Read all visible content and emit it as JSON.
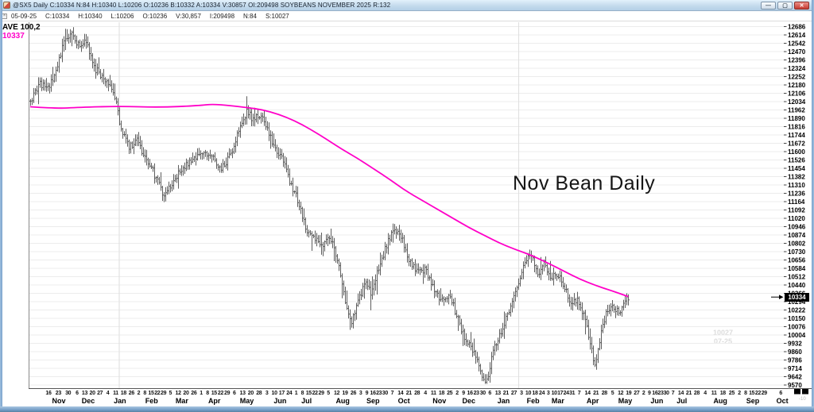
{
  "window": {
    "title": "@SX5 Daily C:10334 N:84 H:10340 L:10206 O:10236 B:10332 A:10334 V:30857 OI:209498 SOYBEANS NOVEMBER 2025 R:132",
    "controls": {
      "minimize": "—",
      "maximize": "▢",
      "close": "✕"
    }
  },
  "info_bar": {
    "collapse_glyph": "×",
    "date": "05-09-25",
    "fields": [
      "C:10334",
      "H:10340",
      "L:10206",
      "O:10236",
      "V:30,857",
      "I:209498",
      "N:84",
      "S:10027"
    ]
  },
  "overlay": {
    "ave_label": "AVE 100,2",
    "ave_value": "10337",
    "annotation": "Nov Bean Daily",
    "watermark_line1": "10027",
    "watermark_line2": "07-25",
    "corner_hint": "-10"
  },
  "chart_data": {
    "type": "ohlc-bar",
    "symbol": "@SX5",
    "timeframe": "Daily",
    "contract": "SOYBEANS NOVEMBER 2025",
    "session": {
      "date": "05-09-25",
      "open": 10236,
      "high": 10340,
      "low": 10206,
      "close": 10334,
      "volume": 30857,
      "open_interest": 209498
    },
    "current_price": {
      "label": "10334",
      "value_cents": 1033.5
    },
    "colors": {
      "bars": "#4d4d4d",
      "grid": "#ececec",
      "ma": "#ff00c8",
      "year_line": "#dedede"
    },
    "y_axis": {
      "unit": "US cents per bushel, eighths notation",
      "top_value_cents": 1268.75,
      "step_cents": 7.25,
      "labels": [
        "12686",
        "12614",
        "12542",
        "12470",
        "12396",
        "12324",
        "12252",
        "12180",
        "12106",
        "12034",
        "11962",
        "11890",
        "11816",
        "11744",
        "11672",
        "11600",
        "11526",
        "11454",
        "11382",
        "11310",
        "11236",
        "11164",
        "11092",
        "11020",
        "10946",
        "10874",
        "10802",
        "10730",
        "10656",
        "10584",
        "10512",
        "10440",
        "10366",
        "10294",
        "10222",
        "10150",
        "10076",
        "10004",
        "9932",
        "9860",
        "9786",
        "9714",
        "9642",
        "9570"
      ]
    },
    "x_axis": {
      "year_separators": [
        0.12,
        0.649
      ],
      "months": [
        {
          "label": "Nov",
          "center": 0.04,
          "days": [
            "16",
            "23",
            "30"
          ]
        },
        {
          "label": "Dec",
          "center": 0.079,
          "days": [
            "6",
            "13",
            "20",
            "27"
          ]
        },
        {
          "label": "Jan",
          "center": 0.121,
          "days": [
            "4",
            "11",
            "18",
            "26"
          ]
        },
        {
          "label": "Feb",
          "center": 0.163,
          "days": [
            "2",
            "8",
            "15",
            "22",
            "29"
          ]
        },
        {
          "label": "Mar",
          "center": 0.203,
          "days": [
            "5",
            "12",
            "20",
            "26"
          ]
        },
        {
          "label": "Apr",
          "center": 0.246,
          "days": [
            "1",
            "8",
            "15",
            "22",
            "29"
          ]
        },
        {
          "label": "May",
          "center": 0.289,
          "days": [
            "6",
            "13",
            "20",
            "28"
          ]
        },
        {
          "label": "Jun",
          "center": 0.333,
          "days": [
            "3",
            "10",
            "17",
            "24"
          ]
        },
        {
          "label": "Jul",
          "center": 0.368,
          "days": [
            "1",
            "8",
            "15",
            "22",
            "29"
          ]
        },
        {
          "label": "Aug",
          "center": 0.416,
          "days": [
            "5",
            "12",
            "19",
            "26"
          ]
        },
        {
          "label": "Sep",
          "center": 0.456,
          "days": [
            "3",
            "9",
            "16",
            "23",
            "30"
          ]
        },
        {
          "label": "Oct",
          "center": 0.497,
          "days": [
            "7",
            "14",
            "21",
            "28"
          ]
        },
        {
          "label": "Nov",
          "center": 0.544,
          "days": [
            "4",
            "11",
            "18",
            "25"
          ]
        },
        {
          "label": "Dec",
          "center": 0.583,
          "days": [
            "2",
            "9",
            "16",
            "23",
            "30"
          ]
        },
        {
          "label": "Jan",
          "center": 0.629,
          "days": [
            "6",
            "13",
            "21",
            "27"
          ]
        },
        {
          "label": "Feb",
          "center": 0.668,
          "days": [
            "3",
            "10",
            "18",
            "24"
          ]
        },
        {
          "label": "Mar",
          "center": 0.701,
          "days": [
            "3",
            "10",
            "17",
            "24",
            "31"
          ]
        },
        {
          "label": "Apr",
          "center": 0.747,
          "days": [
            "7",
            "14",
            "21",
            "28"
          ]
        },
        {
          "label": "May",
          "center": 0.79,
          "days": [
            "5",
            "12",
            "19",
            "27"
          ]
        },
        {
          "label": "Jun",
          "center": 0.832,
          "days": [
            "2",
            "9",
            "16",
            "23",
            "30"
          ]
        },
        {
          "label": "Jul",
          "center": 0.865,
          "days": [
            "7",
            "14",
            "21",
            "28"
          ]
        },
        {
          "label": "Aug",
          "center": 0.916,
          "days": [
            "4",
            "11",
            "18",
            "25"
          ]
        },
        {
          "label": "Sep",
          "center": 0.959,
          "days": [
            "2",
            "8",
            "15",
            "22",
            "29"
          ]
        },
        {
          "label": "Oct",
          "center": 0.998,
          "days": [
            "6"
          ]
        }
      ]
    },
    "bars": {
      "start": 0.002,
      "end": 0.7937,
      "step": 0.002105,
      "seed": 1234
    },
    "close_trend": [
      [
        0.002,
        1203
      ],
      [
        0.015,
        1219
      ],
      [
        0.023,
        1214
      ],
      [
        0.034,
        1226
      ],
      [
        0.046,
        1254
      ],
      [
        0.057,
        1263
      ],
      [
        0.067,
        1250
      ],
      [
        0.076,
        1257
      ],
      [
        0.086,
        1233
      ],
      [
        0.097,
        1226
      ],
      [
        0.107,
        1216
      ],
      [
        0.116,
        1202
      ],
      [
        0.122,
        1178
      ],
      [
        0.133,
        1164
      ],
      [
        0.143,
        1171
      ],
      [
        0.154,
        1154
      ],
      [
        0.164,
        1143
      ],
      [
        0.178,
        1123
      ],
      [
        0.188,
        1129
      ],
      [
        0.196,
        1140
      ],
      [
        0.206,
        1147
      ],
      [
        0.22,
        1154
      ],
      [
        0.234,
        1160
      ],
      [
        0.244,
        1154
      ],
      [
        0.255,
        1145
      ],
      [
        0.267,
        1157
      ],
      [
        0.278,
        1178
      ],
      [
        0.288,
        1195
      ],
      [
        0.297,
        1188
      ],
      [
        0.305,
        1192
      ],
      [
        0.315,
        1181
      ],
      [
        0.325,
        1164
      ],
      [
        0.336,
        1154
      ],
      [
        0.346,
        1133
      ],
      [
        0.357,
        1116
      ],
      [
        0.367,
        1092
      ],
      [
        0.378,
        1085
      ],
      [
        0.388,
        1078
      ],
      [
        0.399,
        1085
      ],
      [
        0.409,
        1064
      ],
      [
        0.42,
        1026
      ],
      [
        0.427,
        1012
      ],
      [
        0.436,
        1029
      ],
      [
        0.444,
        1047
      ],
      [
        0.453,
        1036
      ],
      [
        0.462,
        1057
      ],
      [
        0.473,
        1078
      ],
      [
        0.483,
        1095
      ],
      [
        0.494,
        1085
      ],
      [
        0.504,
        1064
      ],
      [
        0.515,
        1054
      ],
      [
        0.525,
        1057
      ],
      [
        0.536,
        1040
      ],
      [
        0.546,
        1029
      ],
      [
        0.557,
        1036
      ],
      [
        0.567,
        1016
      ],
      [
        0.578,
        995
      ],
      [
        0.588,
        988
      ],
      [
        0.599,
        967
      ],
      [
        0.606,
        960
      ],
      [
        0.615,
        988
      ],
      [
        0.625,
        1002
      ],
      [
        0.636,
        1023
      ],
      [
        0.646,
        1043
      ],
      [
        0.657,
        1064
      ],
      [
        0.665,
        1071
      ],
      [
        0.674,
        1054
      ],
      [
        0.682,
        1064
      ],
      [
        0.69,
        1050
      ],
      [
        0.699,
        1054
      ],
      [
        0.709,
        1043
      ],
      [
        0.718,
        1026
      ],
      [
        0.726,
        1033
      ],
      [
        0.735,
        1016
      ],
      [
        0.743,
        995
      ],
      [
        0.75,
        971
      ],
      [
        0.757,
        1002
      ],
      [
        0.764,
        1019
      ],
      [
        0.773,
        1026
      ],
      [
        0.781,
        1019
      ],
      [
        0.789,
        1031
      ],
      [
        0.794,
        1033.5
      ]
    ],
    "ma_100": {
      "label": "AVE 100,2",
      "last_value_label": "10337",
      "points": [
        [
          0.002,
          1199
        ],
        [
          0.036,
          1197.5
        ],
        [
          0.067,
          1198.5
        ],
        [
          0.12,
          1199.5
        ],
        [
          0.173,
          1198.5
        ],
        [
          0.225,
          1200
        ],
        [
          0.246,
          1201.5
        ],
        [
          0.288,
          1198.5
        ],
        [
          0.309,
          1196.5
        ],
        [
          0.331,
          1192.5
        ],
        [
          0.352,
          1187
        ],
        [
          0.373,
          1179.5
        ],
        [
          0.394,
          1171
        ],
        [
          0.415,
          1162
        ],
        [
          0.436,
          1154
        ],
        [
          0.457,
          1145
        ],
        [
          0.478,
          1136
        ],
        [
          0.499,
          1126
        ],
        [
          0.52,
          1118
        ],
        [
          0.541,
          1110
        ],
        [
          0.562,
          1102
        ],
        [
          0.583,
          1094
        ],
        [
          0.604,
          1087
        ],
        [
          0.625,
          1080
        ],
        [
          0.646,
          1074.5
        ],
        [
          0.667,
          1069.5
        ],
        [
          0.688,
          1063
        ],
        [
          0.709,
          1056
        ],
        [
          0.73,
          1049
        ],
        [
          0.751,
          1043.5
        ],
        [
          0.772,
          1039
        ],
        [
          0.794,
          1033.9
        ]
      ]
    }
  }
}
